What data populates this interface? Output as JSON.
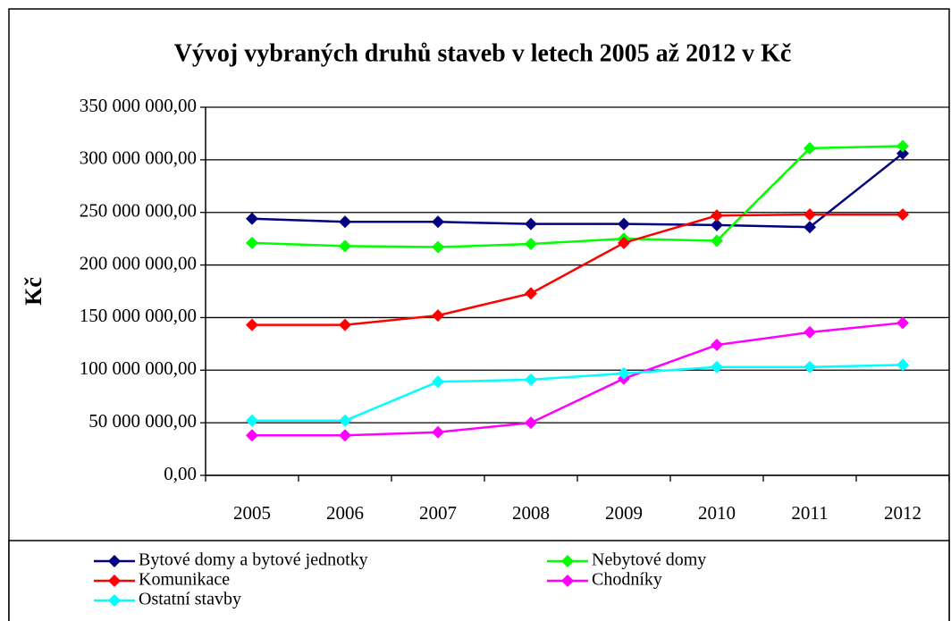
{
  "chart_data": {
    "type": "line",
    "title": "Vývoj vybraných druhů staveb v letech 2005 až 2012 v Kč",
    "y_label": "Kč",
    "categories": [
      "2005",
      "2006",
      "2007",
      "2008",
      "2009",
      "2010",
      "2011",
      "2012"
    ],
    "ylim": [
      0,
      350000000
    ],
    "yticks": [
      {
        "value": 0,
        "label": "0,00"
      },
      {
        "value": 50000000,
        "label": "50 000 000,00"
      },
      {
        "value": 100000000,
        "label": "100 000 000,00"
      },
      {
        "value": 150000000,
        "label": "150 000 000,00"
      },
      {
        "value": 200000000,
        "label": "200 000 000,00"
      },
      {
        "value": 250000000,
        "label": "250 000 000,00"
      },
      {
        "value": 300000000,
        "label": "300 000 000,00"
      },
      {
        "value": 350000000,
        "label": "350 000 000,00"
      }
    ],
    "grid": true,
    "legend": "bottom",
    "series": [
      {
        "name": "Bytové domy a bytové jednotky",
        "color": "#000080",
        "values": [
          244000000,
          241000000,
          241000000,
          239000000,
          239000000,
          238000000,
          236000000,
          306000000
        ]
      },
      {
        "name": "Nebytové domy",
        "color": "#00ff00",
        "values": [
          221000000,
          218000000,
          217000000,
          220000000,
          225000000,
          223000000,
          311000000,
          313000000
        ]
      },
      {
        "name": "Komunikace",
        "color": "#ff0000",
        "values": [
          143000000,
          143000000,
          152000000,
          173000000,
          221000000,
          247000000,
          248000000,
          248000000
        ]
      },
      {
        "name": "Chodníky",
        "color": "#ff00ff",
        "values": [
          38000000,
          38000000,
          41000000,
          50000000,
          92000000,
          124000000,
          136000000,
          145000000
        ]
      },
      {
        "name": "Ostatní stavby",
        "color": "#00ffff",
        "values": [
          52000000,
          52000000,
          89000000,
          91000000,
          97000000,
          103000000,
          103000000,
          105000000
        ]
      }
    ]
  }
}
